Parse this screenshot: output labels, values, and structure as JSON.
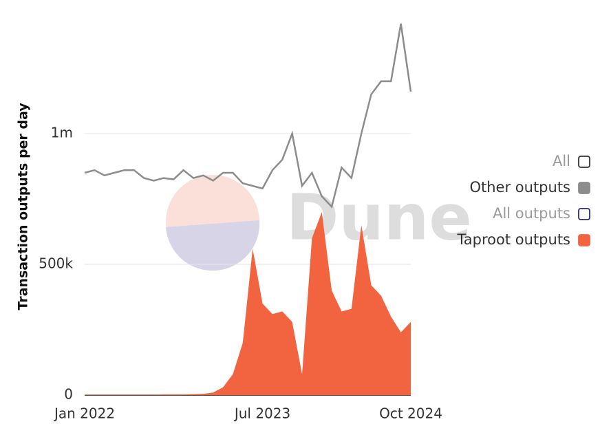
{
  "chart_data": {
    "type": "line-area",
    "y_label": "Transaction outputs per day",
    "watermark": "Dune",
    "x": [
      "2022-01",
      "2022-02",
      "2022-03",
      "2022-04",
      "2022-05",
      "2022-06",
      "2022-07",
      "2022-08",
      "2022-09",
      "2022-10",
      "2022-11",
      "2022-12",
      "2023-01",
      "2023-02",
      "2023-03",
      "2023-04",
      "2023-05",
      "2023-06",
      "2023-07",
      "2023-08",
      "2023-09",
      "2023-10",
      "2023-11",
      "2023-12",
      "2024-01",
      "2024-02",
      "2024-03",
      "2024-04",
      "2024-05",
      "2024-06",
      "2024-07",
      "2024-08",
      "2024-09",
      "2024-10"
    ],
    "xticks": [
      {
        "value": "2022-01",
        "label": "Jan 2022"
      },
      {
        "value": "2023-07",
        "label": "Jul 2023"
      },
      {
        "value": "2024-10",
        "label": "Oct 2024"
      }
    ],
    "ylim": [
      0,
      1500000
    ],
    "yticks": [
      0,
      {
        "value": 500000,
        "label": "500k"
      },
      {
        "value": 1000000,
        "label": "1m"
      }
    ],
    "grid": true,
    "series": [
      {
        "name": "Other outputs",
        "kind": "line",
        "color": "#8c8c8c",
        "values": [
          850000,
          860000,
          840000,
          850000,
          860000,
          860000,
          830000,
          820000,
          830000,
          825000,
          860000,
          830000,
          840000,
          820000,
          850000,
          850000,
          810000,
          800000,
          790000,
          860000,
          900000,
          1000000,
          800000,
          850000,
          760000,
          720000,
          870000,
          830000,
          1000000,
          1150000,
          1200000,
          1200000,
          1420000,
          1160000
        ]
      },
      {
        "name": "Taproot outputs",
        "kind": "area",
        "color": "#f26440",
        "values": [
          2000,
          2000,
          2000,
          2000,
          2000,
          2000,
          2000,
          2000,
          3000,
          3000,
          3000,
          4000,
          5000,
          10000,
          30000,
          80000,
          200000,
          560000,
          350000,
          310000,
          320000,
          280000,
          80000,
          600000,
          700000,
          400000,
          320000,
          330000,
          650000,
          420000,
          380000,
          300000,
          240000,
          280000
        ]
      }
    ],
    "legend": [
      {
        "name": "All",
        "color": "#333333",
        "filled": false,
        "dim": true
      },
      {
        "name": "Other outputs",
        "color": "#8c8c8c",
        "filled": true,
        "dim": false
      },
      {
        "name": "All outputs",
        "color": "#2c2c6c",
        "filled": false,
        "dim": true
      },
      {
        "name": "Taproot outputs",
        "color": "#f26440",
        "filled": true,
        "dim": false
      }
    ]
  }
}
